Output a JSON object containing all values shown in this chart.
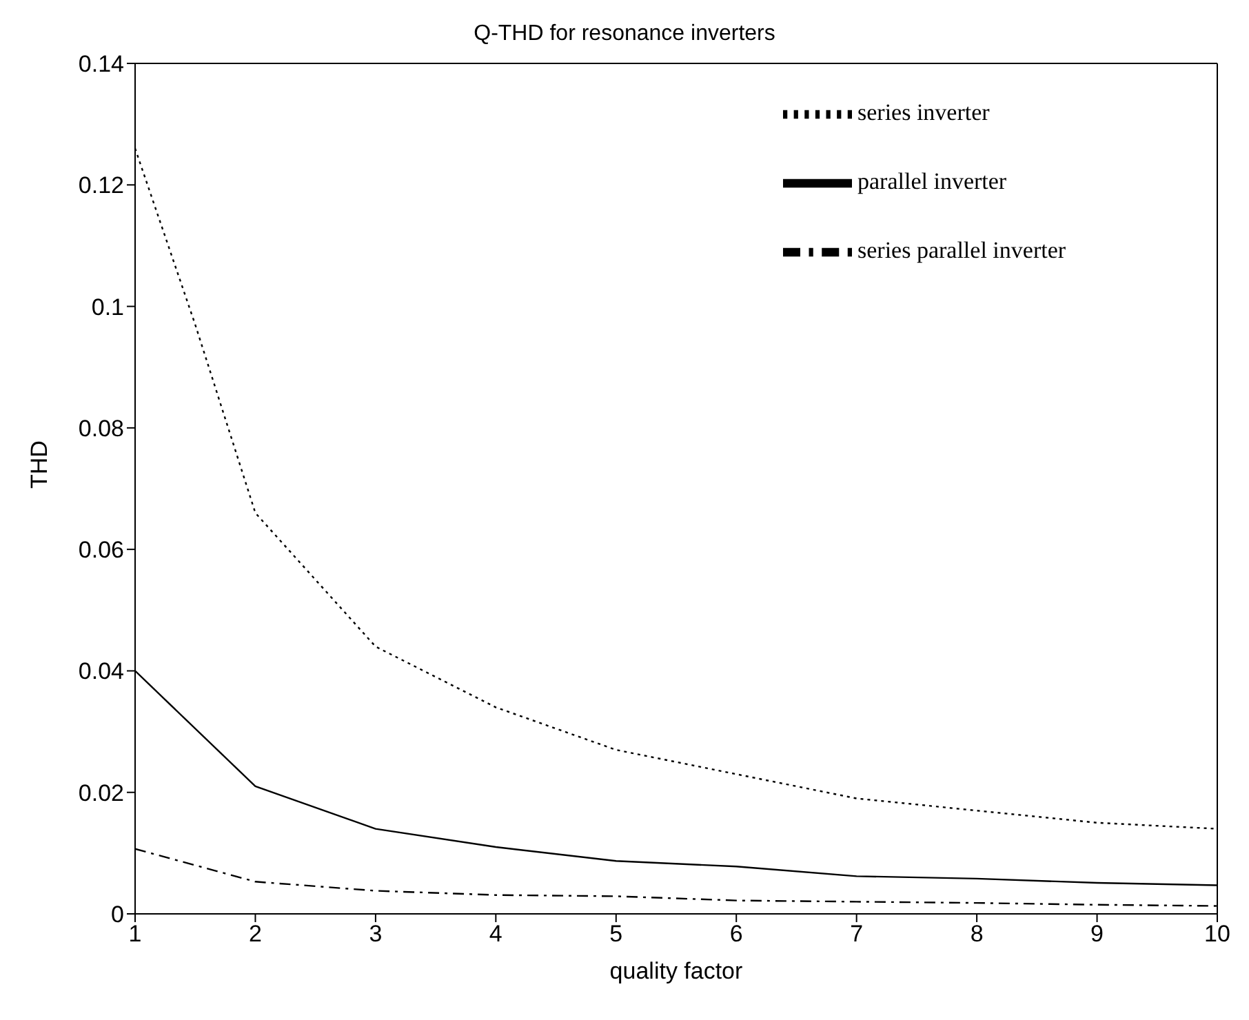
{
  "chart_data": {
    "type": "line",
    "title": "Q-THD for resonance inverters",
    "xlabel": "quality factor",
    "ylabel": "THD",
    "x": [
      1,
      1.5,
      2,
      3,
      4,
      5,
      6,
      7,
      8,
      9,
      10
    ],
    "series": [
      {
        "name": "series inverter",
        "color": "#000000",
        "line_style": "dotted",
        "values": [
          0.126,
          0.097,
          0.066,
          0.044,
          0.034,
          0.027,
          0.023,
          0.019,
          0.017,
          0.015,
          0.014
        ]
      },
      {
        "name": "parallel inverter",
        "color": "#000000",
        "line_style": "solid",
        "values": [
          0.04,
          null,
          0.021,
          0.014,
          0.011,
          0.0087,
          0.0078,
          0.0062,
          0.0058,
          0.0051,
          0.0047
        ]
      },
      {
        "name": "series parallel inverter",
        "color": "#000000",
        "line_style": "dashdot",
        "values": [
          0.0107,
          null,
          0.0053,
          0.0038,
          0.0031,
          0.0029,
          0.0022,
          0.002,
          0.0018,
          0.0015,
          0.0013
        ]
      }
    ],
    "xlim": [
      1,
      10
    ],
    "xticks": [
      1,
      2,
      3,
      4,
      5,
      6,
      7,
      8,
      9,
      10
    ],
    "ylim": [
      0,
      0.14
    ],
    "yticks": [
      0,
      0.02,
      0.04,
      0.06,
      0.08,
      0.1,
      0.12,
      0.14
    ],
    "grid": false,
    "legend": "top right",
    "marker": "none"
  }
}
